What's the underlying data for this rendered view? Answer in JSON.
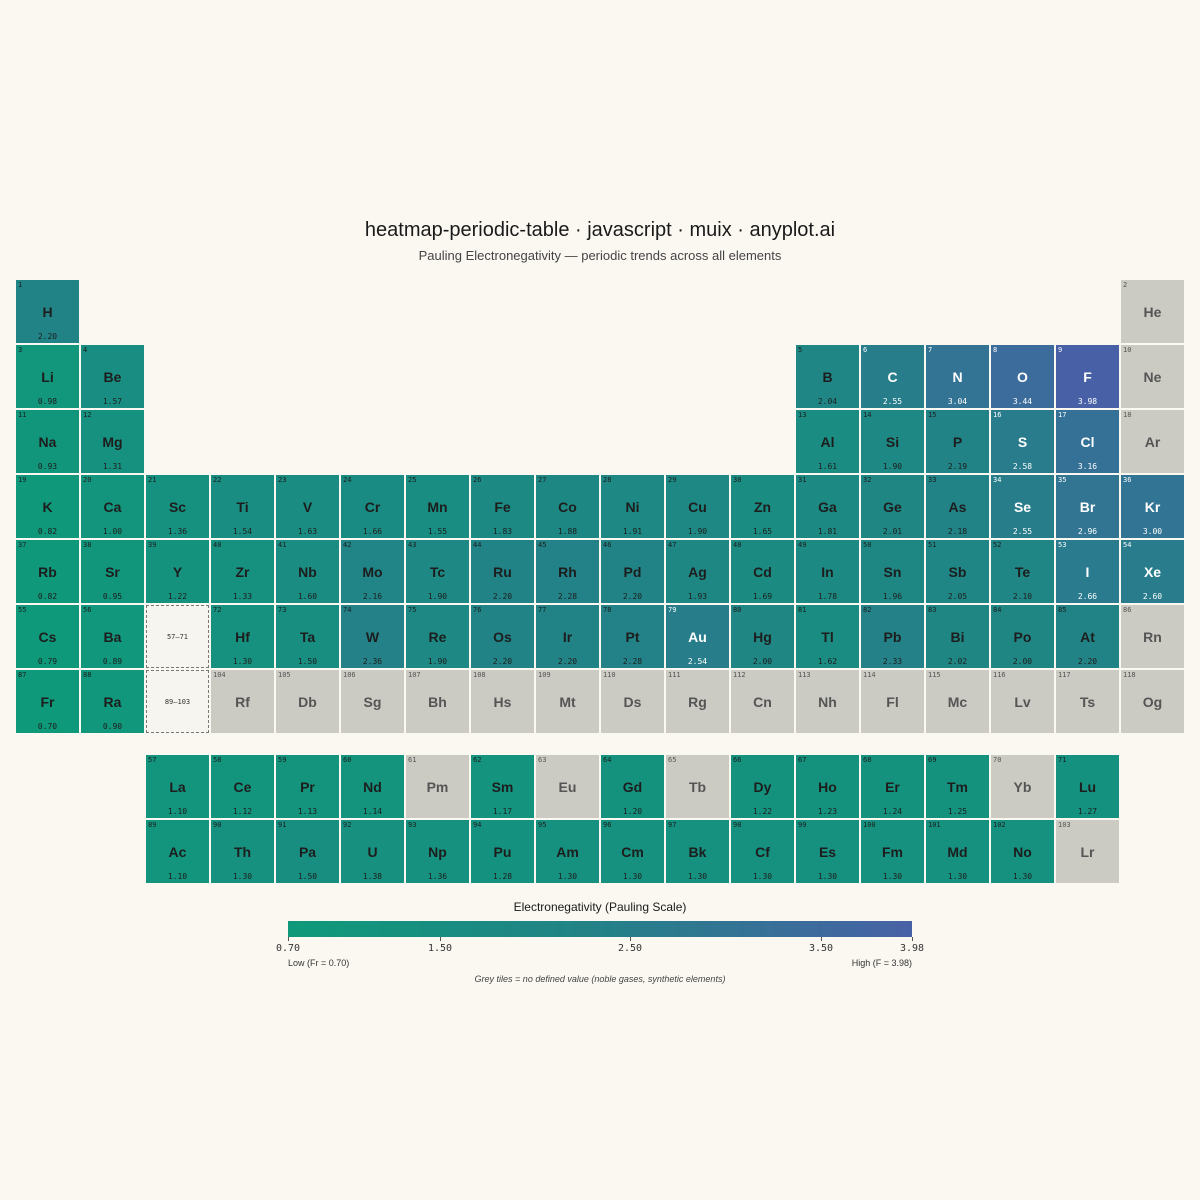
{
  "chart_data": {
    "type": "heatmap",
    "title": "heatmap-periodic-table · javascript · muix · anyplot.ai",
    "subtitle": "Pauling Electronegativity — periodic trends across all elements",
    "value_range": [
      0.7,
      3.98
    ],
    "colors": {
      "low": "#0e9a7a",
      "mid": "#238187",
      "high": "#4861a6",
      "missing": "#cbcac3",
      "background": "#faf8f1"
    },
    "elements": [
      {
        "n": 1,
        "s": "H",
        "v": "2.20",
        "r": 1,
        "c": 1
      },
      {
        "n": 2,
        "s": "He",
        "v": null,
        "r": 1,
        "c": 18
      },
      {
        "n": 3,
        "s": "Li",
        "v": "0.98",
        "r": 2,
        "c": 1
      },
      {
        "n": 4,
        "s": "Be",
        "v": "1.57",
        "r": 2,
        "c": 2
      },
      {
        "n": 5,
        "s": "B",
        "v": "2.04",
        "r": 2,
        "c": 13
      },
      {
        "n": 6,
        "s": "C",
        "v": "2.55",
        "r": 2,
        "c": 14
      },
      {
        "n": 7,
        "s": "N",
        "v": "3.04",
        "r": 2,
        "c": 15
      },
      {
        "n": 8,
        "s": "O",
        "v": "3.44",
        "r": 2,
        "c": 16
      },
      {
        "n": 9,
        "s": "F",
        "v": "3.98",
        "r": 2,
        "c": 17
      },
      {
        "n": 10,
        "s": "Ne",
        "v": null,
        "r": 2,
        "c": 18
      },
      {
        "n": 11,
        "s": "Na",
        "v": "0.93",
        "r": 3,
        "c": 1
      },
      {
        "n": 12,
        "s": "Mg",
        "v": "1.31",
        "r": 3,
        "c": 2
      },
      {
        "n": 13,
        "s": "Al",
        "v": "1.61",
        "r": 3,
        "c": 13
      },
      {
        "n": 14,
        "s": "Si",
        "v": "1.90",
        "r": 3,
        "c": 14
      },
      {
        "n": 15,
        "s": "P",
        "v": "2.19",
        "r": 3,
        "c": 15
      },
      {
        "n": 16,
        "s": "S",
        "v": "2.58",
        "r": 3,
        "c": 16
      },
      {
        "n": 17,
        "s": "Cl",
        "v": "3.16",
        "r": 3,
        "c": 17
      },
      {
        "n": 18,
        "s": "Ar",
        "v": null,
        "r": 3,
        "c": 18
      },
      {
        "n": 19,
        "s": "K",
        "v": "0.82",
        "r": 4,
        "c": 1
      },
      {
        "n": 20,
        "s": "Ca",
        "v": "1.00",
        "r": 4,
        "c": 2
      },
      {
        "n": 21,
        "s": "Sc",
        "v": "1.36",
        "r": 4,
        "c": 3
      },
      {
        "n": 22,
        "s": "Ti",
        "v": "1.54",
        "r": 4,
        "c": 4
      },
      {
        "n": 23,
        "s": "V",
        "v": "1.63",
        "r": 4,
        "c": 5
      },
      {
        "n": 24,
        "s": "Cr",
        "v": "1.66",
        "r": 4,
        "c": 6
      },
      {
        "n": 25,
        "s": "Mn",
        "v": "1.55",
        "r": 4,
        "c": 7
      },
      {
        "n": 26,
        "s": "Fe",
        "v": "1.83",
        "r": 4,
        "c": 8
      },
      {
        "n": 27,
        "s": "Co",
        "v": "1.88",
        "r": 4,
        "c": 9
      },
      {
        "n": 28,
        "s": "Ni",
        "v": "1.91",
        "r": 4,
        "c": 10
      },
      {
        "n": 29,
        "s": "Cu",
        "v": "1.90",
        "r": 4,
        "c": 11
      },
      {
        "n": 30,
        "s": "Zn",
        "v": "1.65",
        "r": 4,
        "c": 12
      },
      {
        "n": 31,
        "s": "Ga",
        "v": "1.81",
        "r": 4,
        "c": 13
      },
      {
        "n": 32,
        "s": "Ge",
        "v": "2.01",
        "r": 4,
        "c": 14
      },
      {
        "n": 33,
        "s": "As",
        "v": "2.18",
        "r": 4,
        "c": 15
      },
      {
        "n": 34,
        "s": "Se",
        "v": "2.55",
        "r": 4,
        "c": 16
      },
      {
        "n": 35,
        "s": "Br",
        "v": "2.96",
        "r": 4,
        "c": 17
      },
      {
        "n": 36,
        "s": "Kr",
        "v": "3.00",
        "r": 4,
        "c": 18
      },
      {
        "n": 37,
        "s": "Rb",
        "v": "0.82",
        "r": 5,
        "c": 1
      },
      {
        "n": 38,
        "s": "Sr",
        "v": "0.95",
        "r": 5,
        "c": 2
      },
      {
        "n": 39,
        "s": "Y",
        "v": "1.22",
        "r": 5,
        "c": 3
      },
      {
        "n": 40,
        "s": "Zr",
        "v": "1.33",
        "r": 5,
        "c": 4
      },
      {
        "n": 41,
        "s": "Nb",
        "v": "1.60",
        "r": 5,
        "c": 5
      },
      {
        "n": 42,
        "s": "Mo",
        "v": "2.16",
        "r": 5,
        "c": 6
      },
      {
        "n": 43,
        "s": "Tc",
        "v": "1.90",
        "r": 5,
        "c": 7
      },
      {
        "n": 44,
        "s": "Ru",
        "v": "2.20",
        "r": 5,
        "c": 8
      },
      {
        "n": 45,
        "s": "Rh",
        "v": "2.28",
        "r": 5,
        "c": 9
      },
      {
        "n": 46,
        "s": "Pd",
        "v": "2.20",
        "r": 5,
        "c": 10
      },
      {
        "n": 47,
        "s": "Ag",
        "v": "1.93",
        "r": 5,
        "c": 11
      },
      {
        "n": 48,
        "s": "Cd",
        "v": "1.69",
        "r": 5,
        "c": 12
      },
      {
        "n": 49,
        "s": "In",
        "v": "1.78",
        "r": 5,
        "c": 13
      },
      {
        "n": 50,
        "s": "Sn",
        "v": "1.96",
        "r": 5,
        "c": 14
      },
      {
        "n": 51,
        "s": "Sb",
        "v": "2.05",
        "r": 5,
        "c": 15
      },
      {
        "n": 52,
        "s": "Te",
        "v": "2.10",
        "r": 5,
        "c": 16
      },
      {
        "n": 53,
        "s": "I",
        "v": "2.66",
        "r": 5,
        "c": 17
      },
      {
        "n": 54,
        "s": "Xe",
        "v": "2.60",
        "r": 5,
        "c": 18
      },
      {
        "n": 55,
        "s": "Cs",
        "v": "0.79",
        "r": 6,
        "c": 1
      },
      {
        "n": 56,
        "s": "Ba",
        "v": "0.89",
        "r": 6,
        "c": 2
      },
      {
        "n": 72,
        "s": "Hf",
        "v": "1.30",
        "r": 6,
        "c": 4
      },
      {
        "n": 73,
        "s": "Ta",
        "v": "1.50",
        "r": 6,
        "c": 5
      },
      {
        "n": 74,
        "s": "W",
        "v": "2.36",
        "r": 6,
        "c": 6
      },
      {
        "n": 75,
        "s": "Re",
        "v": "1.90",
        "r": 6,
        "c": 7
      },
      {
        "n": 76,
        "s": "Os",
        "v": "2.20",
        "r": 6,
        "c": 8
      },
      {
        "n": 77,
        "s": "Ir",
        "v": "2.20",
        "r": 6,
        "c": 9
      },
      {
        "n": 78,
        "s": "Pt",
        "v": "2.28",
        "r": 6,
        "c": 10
      },
      {
        "n": 79,
        "s": "Au",
        "v": "2.54",
        "r": 6,
        "c": 11
      },
      {
        "n": 80,
        "s": "Hg",
        "v": "2.00",
        "r": 6,
        "c": 12
      },
      {
        "n": 81,
        "s": "Tl",
        "v": "1.62",
        "r": 6,
        "c": 13
      },
      {
        "n": 82,
        "s": "Pb",
        "v": "2.33",
        "r": 6,
        "c": 14
      },
      {
        "n": 83,
        "s": "Bi",
        "v": "2.02",
        "r": 6,
        "c": 15
      },
      {
        "n": 84,
        "s": "Po",
        "v": "2.00",
        "r": 6,
        "c": 16
      },
      {
        "n": 85,
        "s": "At",
        "v": "2.20",
        "r": 6,
        "c": 17
      },
      {
        "n": 86,
        "s": "Rn",
        "v": null,
        "r": 6,
        "c": 18
      },
      {
        "n": 87,
        "s": "Fr",
        "v": "0.70",
        "r": 7,
        "c": 1
      },
      {
        "n": 88,
        "s": "Ra",
        "v": "0.90",
        "r": 7,
        "c": 2
      },
      {
        "n": 104,
        "s": "Rf",
        "v": null,
        "r": 7,
        "c": 4
      },
      {
        "n": 105,
        "s": "Db",
        "v": null,
        "r": 7,
        "c": 5
      },
      {
        "n": 106,
        "s": "Sg",
        "v": null,
        "r": 7,
        "c": 6
      },
      {
        "n": 107,
        "s": "Bh",
        "v": null,
        "r": 7,
        "c": 7
      },
      {
        "n": 108,
        "s": "Hs",
        "v": null,
        "r": 7,
        "c": 8
      },
      {
        "n": 109,
        "s": "Mt",
        "v": null,
        "r": 7,
        "c": 9
      },
      {
        "n": 110,
        "s": "Ds",
        "v": null,
        "r": 7,
        "c": 10
      },
      {
        "n": 111,
        "s": "Rg",
        "v": null,
        "r": 7,
        "c": 11
      },
      {
        "n": 112,
        "s": "Cn",
        "v": null,
        "r": 7,
        "c": 12
      },
      {
        "n": 113,
        "s": "Nh",
        "v": null,
        "r": 7,
        "c": 13
      },
      {
        "n": 114,
        "s": "Fl",
        "v": null,
        "r": 7,
        "c": 14
      },
      {
        "n": 115,
        "s": "Mc",
        "v": null,
        "r": 7,
        "c": 15
      },
      {
        "n": 116,
        "s": "Lv",
        "v": null,
        "r": 7,
        "c": 16
      },
      {
        "n": 117,
        "s": "Ts",
        "v": null,
        "r": 7,
        "c": 17
      },
      {
        "n": 118,
        "s": "Og",
        "v": null,
        "r": 7,
        "c": 18
      },
      {
        "n": 57,
        "s": "La",
        "v": "1.10",
        "r": 8,
        "c": 3
      },
      {
        "n": 58,
        "s": "Ce",
        "v": "1.12",
        "r": 8,
        "c": 4
      },
      {
        "n": 59,
        "s": "Pr",
        "v": "1.13",
        "r": 8,
        "c": 5
      },
      {
        "n": 60,
        "s": "Nd",
        "v": "1.14",
        "r": 8,
        "c": 6
      },
      {
        "n": 61,
        "s": "Pm",
        "v": null,
        "r": 8,
        "c": 7
      },
      {
        "n": 62,
        "s": "Sm",
        "v": "1.17",
        "r": 8,
        "c": 8
      },
      {
        "n": 63,
        "s": "Eu",
        "v": null,
        "r": 8,
        "c": 9
      },
      {
        "n": 64,
        "s": "Gd",
        "v": "1.20",
        "r": 8,
        "c": 10
      },
      {
        "n": 65,
        "s": "Tb",
        "v": null,
        "r": 8,
        "c": 11
      },
      {
        "n": 66,
        "s": "Dy",
        "v": "1.22",
        "r": 8,
        "c": 12
      },
      {
        "n": 67,
        "s": "Ho",
        "v": "1.23",
        "r": 8,
        "c": 13
      },
      {
        "n": 68,
        "s": "Er",
        "v": "1.24",
        "r": 8,
        "c": 14
      },
      {
        "n": 69,
        "s": "Tm",
        "v": "1.25",
        "r": 8,
        "c": 15
      },
      {
        "n": 70,
        "s": "Yb",
        "v": null,
        "r": 8,
        "c": 16
      },
      {
        "n": 71,
        "s": "Lu",
        "v": "1.27",
        "r": 8,
        "c": 17
      },
      {
        "n": 89,
        "s": "Ac",
        "v": "1.10",
        "r": 9,
        "c": 3
      },
      {
        "n": 90,
        "s": "Th",
        "v": "1.30",
        "r": 9,
        "c": 4
      },
      {
        "n": 91,
        "s": "Pa",
        "v": "1.50",
        "r": 9,
        "c": 5
      },
      {
        "n": 92,
        "s": "U",
        "v": "1.38",
        "r": 9,
        "c": 6
      },
      {
        "n": 93,
        "s": "Np",
        "v": "1.36",
        "r": 9,
        "c": 7
      },
      {
        "n": 94,
        "s": "Pu",
        "v": "1.28",
        "r": 9,
        "c": 8
      },
      {
        "n": 95,
        "s": "Am",
        "v": "1.30",
        "r": 9,
        "c": 9
      },
      {
        "n": 96,
        "s": "Cm",
        "v": "1.30",
        "r": 9,
        "c": 10
      },
      {
        "n": 97,
        "s": "Bk",
        "v": "1.30",
        "r": 9,
        "c": 11
      },
      {
        "n": 98,
        "s": "Cf",
        "v": "1.30",
        "r": 9,
        "c": 12
      },
      {
        "n": 99,
        "s": "Es",
        "v": "1.30",
        "r": 9,
        "c": 13
      },
      {
        "n": 100,
        "s": "Fm",
        "v": "1.30",
        "r": 9,
        "c": 14
      },
      {
        "n": 101,
        "s": "Md",
        "v": "1.30",
        "r": 9,
        "c": 15
      },
      {
        "n": 102,
        "s": "No",
        "v": "1.30",
        "r": 9,
        "c": 16
      },
      {
        "n": 103,
        "s": "Lr",
        "v": null,
        "r": 9,
        "c": 17
      }
    ],
    "placeholders": [
      {
        "label": "57–71",
        "r": 6,
        "c": 3
      },
      {
        "label": "89–103",
        "r": 7,
        "c": 3
      }
    ],
    "legend": {
      "title": "Electronegativity (Pauling Scale)",
      "ticks": [
        "0.70",
        "1.50",
        "2.50",
        "3.50",
        "3.98"
      ],
      "low_label": "Low (Fr = 0.70)",
      "high_label": "High (F = 3.98)",
      "note": "Grey tiles = no defined value (noble gases, synthetic elements)"
    }
  }
}
